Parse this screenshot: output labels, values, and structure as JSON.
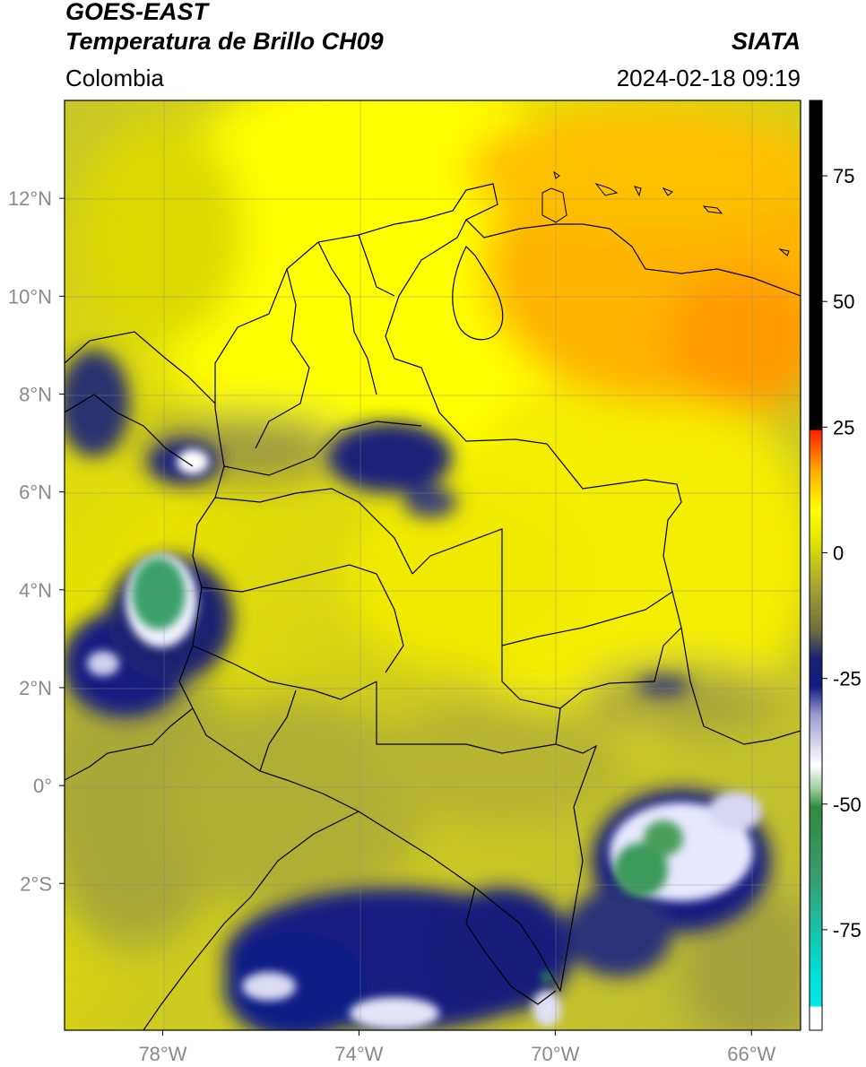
{
  "header": {
    "satellite": "GOES-EAST",
    "product": "Temperatura de Brillo CH09",
    "brand": "SIATA",
    "region": "Colombia",
    "datetime": "2024-02-18 09:19"
  },
  "map": {
    "lat_ticks": [
      {
        "value": 12,
        "label": "12°N"
      },
      {
        "value": 10,
        "label": "10°N"
      },
      {
        "value": 8,
        "label": "8°N"
      },
      {
        "value": 6,
        "label": "6°N"
      },
      {
        "value": 4,
        "label": "4°N"
      },
      {
        "value": 2,
        "label": "2°N"
      },
      {
        "value": 0,
        "label": "0°"
      },
      {
        "value": -2,
        "label": "2°S"
      }
    ],
    "lon_ticks": [
      {
        "value": -78,
        "label": "78°W"
      },
      {
        "value": -74,
        "label": "74°W"
      },
      {
        "value": -70,
        "label": "70°W"
      },
      {
        "value": -66,
        "label": "66°W"
      }
    ],
    "extent": {
      "lon_min": -80,
      "lon_max": -65,
      "lat_min": -5,
      "lat_max": 14
    }
  },
  "colorbar": {
    "ticks": [
      {
        "value": 75,
        "label": "75"
      },
      {
        "value": 50,
        "label": "50"
      },
      {
        "value": 25,
        "label": "25"
      },
      {
        "value": 0,
        "label": "0"
      },
      {
        "value": -25,
        "label": "-25"
      },
      {
        "value": -50,
        "label": "-50"
      },
      {
        "value": -75,
        "label": "-75"
      }
    ],
    "range": [
      -95,
      90
    ],
    "colors": {
      "yellow": "#ffff00",
      "orange": "#ffa500",
      "olive": "#8a8a2e",
      "navy": "#101a80",
      "white": "#ffffff",
      "green": "#2e8b3d",
      "cyan": "#00e0e0",
      "red": "#ff2000",
      "black": "#000000"
    }
  }
}
